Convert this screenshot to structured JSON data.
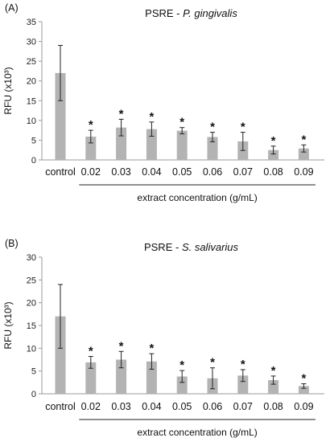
{
  "chart_data": [
    {
      "type": "bar",
      "panel_label": "(A)",
      "title_prefix": "PSRE - ",
      "title_italic": "P. gingivalis",
      "ylabel": "RFU (x10³)",
      "xlabel": "extract concentration (g/mL)",
      "ylim": [
        0,
        35
      ],
      "yticks": [
        0,
        5,
        10,
        15,
        20,
        25,
        30,
        35
      ],
      "categories": [
        "control",
        "0.02",
        "0.03",
        "0.04",
        "0.05",
        "0.06",
        "0.07",
        "0.08",
        "0.09"
      ],
      "values": [
        22.0,
        5.9,
        8.2,
        7.8,
        7.4,
        5.8,
        4.7,
        2.5,
        2.9
      ],
      "errors": [
        7.0,
        1.6,
        2.1,
        1.8,
        0.8,
        1.2,
        2.3,
        1.0,
        0.9
      ],
      "annotations": [
        "",
        "*",
        "*",
        "*",
        "*",
        "*",
        "*",
        "*",
        "*"
      ],
      "bar_color": "#b3b3b3",
      "grid": false
    },
    {
      "type": "bar",
      "panel_label": "(B)",
      "title_prefix": "PSRE - ",
      "title_italic": "S. salivarius",
      "ylabel": "RFU (x10³)",
      "xlabel": "extract concentration (g/mL)",
      "ylim": [
        0,
        30
      ],
      "yticks": [
        0,
        5,
        10,
        15,
        20,
        25,
        30
      ],
      "categories": [
        "control",
        "0.02",
        "0.03",
        "0.04",
        "0.05",
        "0.06",
        "0.07",
        "0.08",
        "0.09"
      ],
      "values": [
        17.0,
        6.9,
        7.5,
        7.1,
        3.8,
        3.4,
        4.0,
        3.0,
        1.7
      ],
      "errors": [
        7.0,
        1.3,
        1.8,
        1.7,
        1.3,
        2.3,
        1.3,
        0.9,
        0.5
      ],
      "annotations": [
        "",
        "*",
        "*",
        "*",
        "*",
        "*",
        "*",
        "*",
        "*"
      ],
      "bar_color": "#b3b3b3",
      "grid": false
    }
  ]
}
